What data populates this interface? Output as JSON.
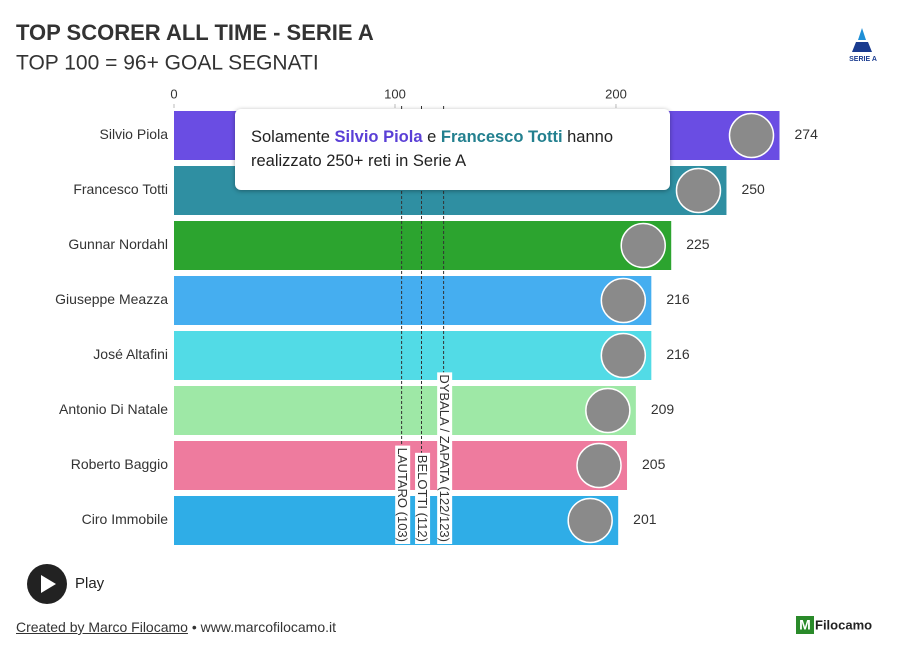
{
  "chart_data": {
    "type": "bar",
    "orientation": "horizontal",
    "title": "TOP SCORER ALL TIME - SERIE A",
    "subtitle": "TOP 100 = 96+ GOAL SEGNATI",
    "categories": [
      "Silvio Piola",
      "Francesco Totti",
      "Gunnar Nordahl",
      "Giuseppe Meazza",
      "José Altafini",
      "Antonio Di Natale",
      "Roberto Baggio",
      "Ciro Immobile"
    ],
    "values": [
      274,
      250,
      225,
      216,
      216,
      209,
      205,
      201
    ],
    "colors": [
      "#6a4de3",
      "#2f8fa2",
      "#2ca42f",
      "#45aef0",
      "#52dbe6",
      "#9ee8a6",
      "#ee7b9e",
      "#2fade7"
    ],
    "xlim": [
      0,
      274
    ],
    "xticks": [
      0,
      100,
      200
    ],
    "reference_lines": [
      {
        "label": "LAUTARO (103)",
        "value": 103
      },
      {
        "label": "BELOTTI (112)",
        "value": 112
      },
      {
        "label": "DYBALA / ZAPATA (122/123)",
        "value": 122
      }
    ],
    "annotation": {
      "before": "Solamente",
      "highlight_1": "Silvio Piola",
      "middle": "e",
      "highlight_2": "Francesco Totti",
      "after": "hanno realizzato 250+ reti in Serie A"
    },
    "play_label": "Play",
    "credit_link": "Created by Marco Filocamo",
    "credit_site": "www.marcofilocamo.it",
    "brand": "Filocamo",
    "logo_text": "SERIE A"
  }
}
